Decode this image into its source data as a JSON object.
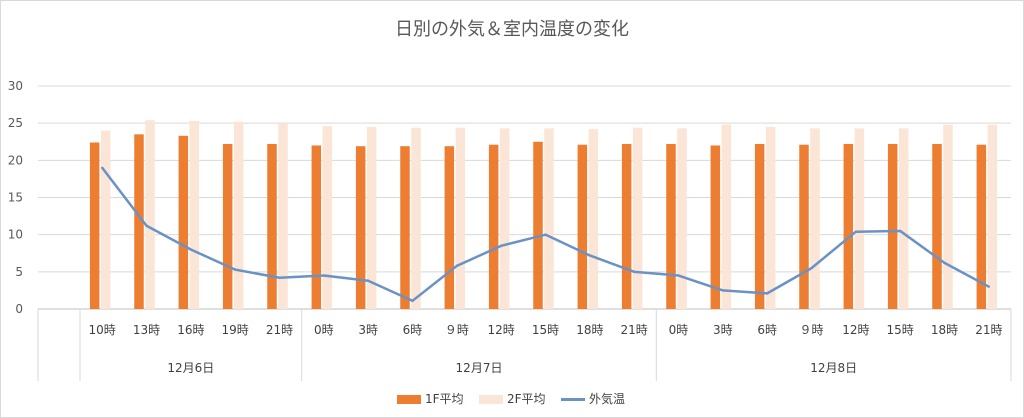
{
  "chart_data": {
    "type": "bar",
    "title": "日別の外気＆室内温度の変化",
    "ylim": [
      0,
      30
    ],
    "yticks": [
      0,
      5,
      10,
      15,
      20,
      25,
      30
    ],
    "grid": true,
    "legend_position": "bottom",
    "categories": [
      "10時",
      "13時",
      "16時",
      "19時",
      "21時",
      "0時",
      "3時",
      "6時",
      "９時",
      "12時",
      "15時",
      "18時",
      "21時",
      "0時",
      "3時",
      "6時",
      "９時",
      "12時",
      "15時",
      "18時",
      "21時"
    ],
    "groups": [
      {
        "label": "12月6日",
        "count": 5
      },
      {
        "label": "12月7日",
        "count": 8
      },
      {
        "label": "12月8日",
        "count": 8
      }
    ],
    "series": [
      {
        "name": "1F平均",
        "kind": "bar",
        "color": "#ED7D31",
        "values": [
          22.4,
          23.5,
          23.3,
          22.2,
          22.2,
          22.0,
          21.9,
          21.9,
          21.9,
          22.1,
          22.5,
          22.1,
          22.2,
          22.2,
          22.0,
          22.2,
          22.1,
          22.2,
          22.2,
          22.2,
          22.1
        ]
      },
      {
        "name": "2F平均",
        "kind": "bar",
        "color": "#FBE5D6",
        "values": [
          24.0,
          25.4,
          25.3,
          25.2,
          25.0,
          24.6,
          24.5,
          24.4,
          24.4,
          24.3,
          24.3,
          24.2,
          24.4,
          24.3,
          24.8,
          24.5,
          24.3,
          24.3,
          24.3,
          24.8,
          24.8
        ]
      },
      {
        "name": "外気温",
        "kind": "line",
        "color": "#6A92C5",
        "values": [
          19.0,
          11.2,
          8.0,
          5.3,
          4.2,
          4.5,
          3.8,
          1.1,
          5.8,
          8.5,
          10.0,
          7.2,
          5.0,
          4.5,
          2.5,
          2.1,
          5.5,
          10.4,
          10.5,
          6.2,
          3.0
        ]
      }
    ]
  }
}
